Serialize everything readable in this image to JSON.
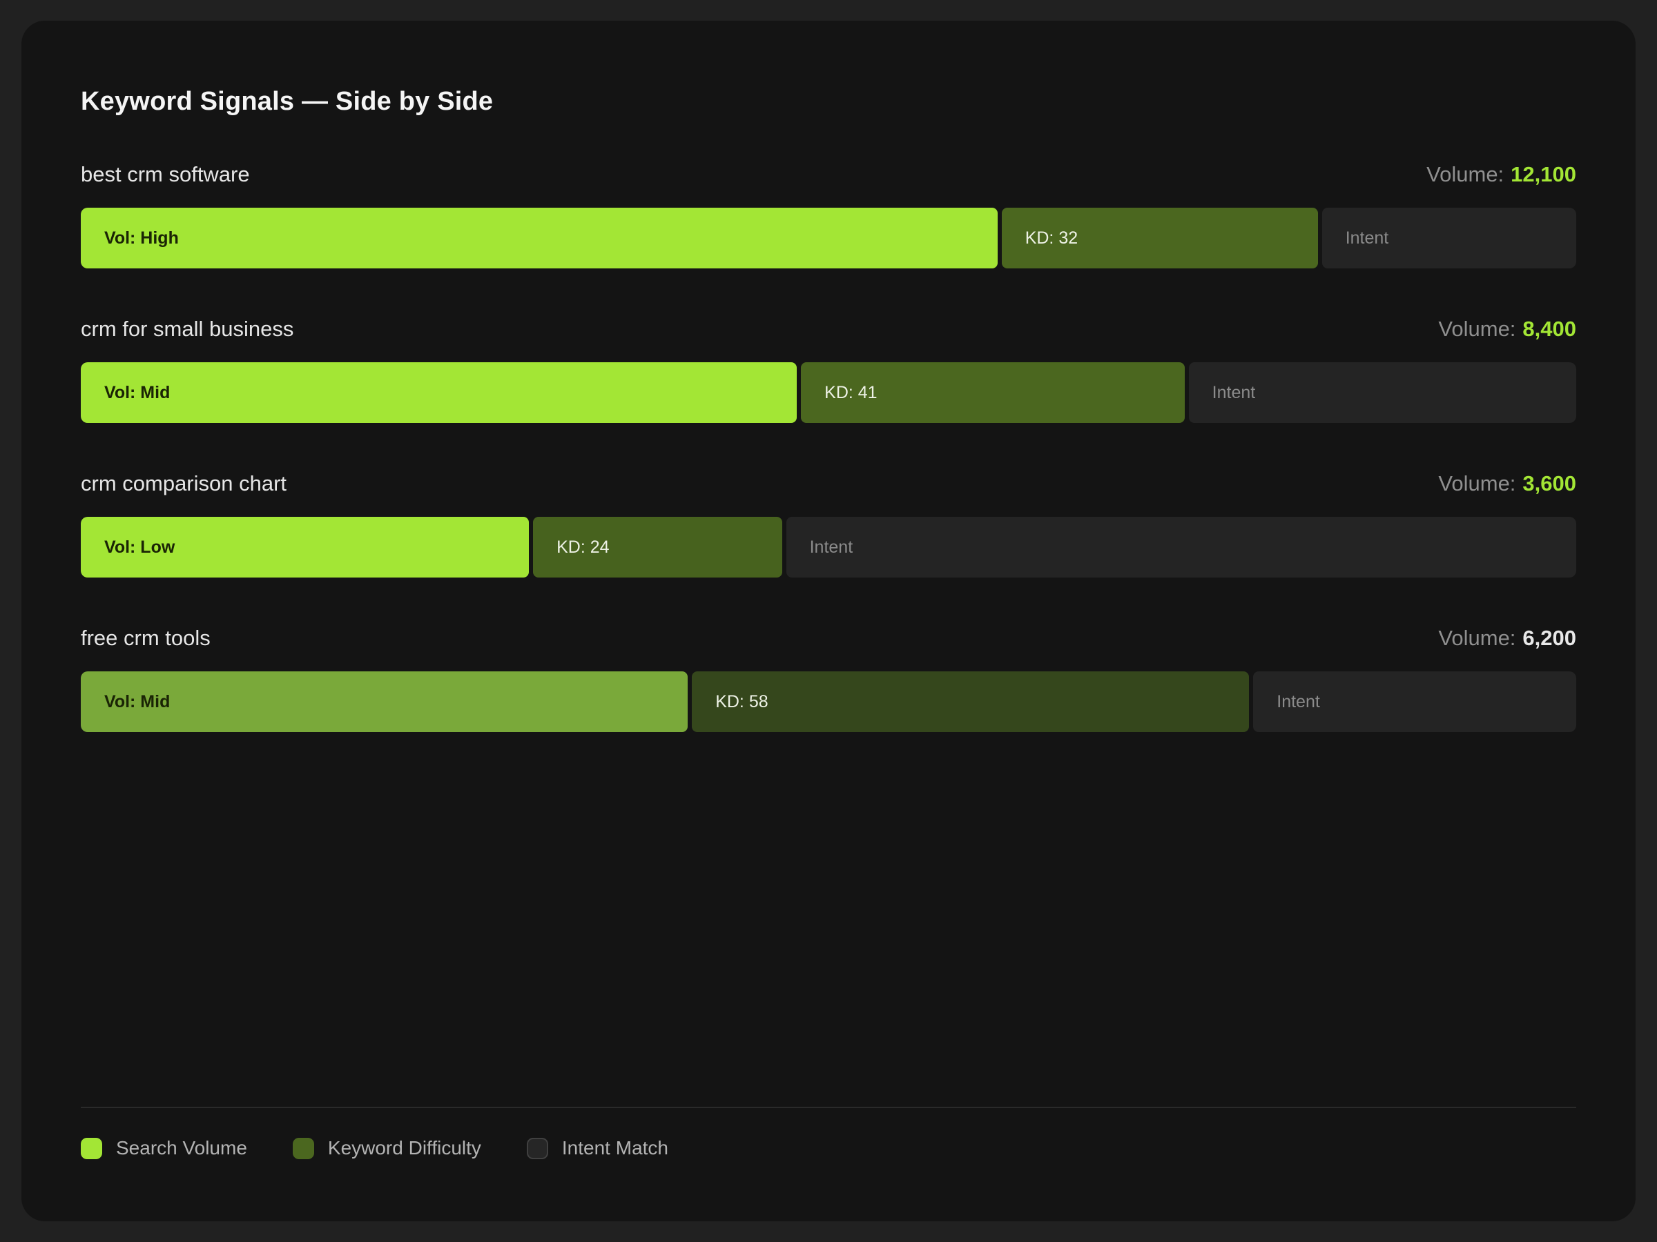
{
  "title": "Keyword Signals — Side by Side",
  "accent_color": "#a3e635",
  "chart_data": {
    "type": "bar",
    "title": "Keyword Signals — Side by Side",
    "legend_position": "bottom",
    "legend": [
      "Search Volume",
      "Keyword Difficulty",
      "Intent Match"
    ],
    "categories": [
      "best crm software",
      "crm for small business",
      "crm comparison chart",
      "free crm tools"
    ],
    "volumes": [
      12100,
      8400,
      3600,
      6200
    ],
    "kd_values": [
      32,
      41,
      24,
      58
    ],
    "vol_levels": [
      "High",
      "Mid",
      "Low",
      "Mid"
    ],
    "segment_width_pct": [
      [
        64.6,
        20.0,
        15.4
      ],
      [
        49.7,
        25.0,
        25.3
      ],
      [
        29.8,
        15.0,
        55.2
      ],
      [
        41.6,
        37.9,
        20.5
      ]
    ]
  },
  "rows": [
    {
      "keyword": "best crm software",
      "volume_label": "Volume:",
      "volume_value": "12,100",
      "volume_value_color": "#a3e635",
      "segments": [
        {
          "label": "Vol: High",
          "width": 64.6,
          "color": "#a3e635",
          "text_color": "#1a2405",
          "weight": 700
        },
        {
          "label": "KD: 32",
          "width": 20.0,
          "color": "#4b671f",
          "text_color": "#eef2e6",
          "weight": 500
        },
        {
          "label": "Intent",
          "width": 15.4,
          "color": "#242424",
          "text_color": "#8b8b8b",
          "weight": 400
        }
      ]
    },
    {
      "keyword": "crm for small business",
      "volume_label": "Volume:",
      "volume_value": "8,400",
      "volume_value_color": "#a3e635",
      "segments": [
        {
          "label": "Vol: Mid",
          "width": 49.7,
          "color": "#a3e635",
          "text_color": "#1a2405",
          "weight": 700
        },
        {
          "label": "KD: 41",
          "width": 25.0,
          "color": "#4b671f",
          "text_color": "#eef2e6",
          "weight": 500
        },
        {
          "label": "Intent",
          "width": 25.3,
          "color": "#242424",
          "text_color": "#8b8b8b",
          "weight": 400
        }
      ]
    },
    {
      "keyword": "crm comparison chart",
      "volume_label": "Volume:",
      "volume_value": "3,600",
      "volume_value_color": "#a3e635",
      "segments": [
        {
          "label": "Vol: Low",
          "width": 29.8,
          "color": "#a3e635",
          "text_color": "#1a2405",
          "weight": 700
        },
        {
          "label": "KD: 24",
          "width": 15.0,
          "color": "#47621e",
          "text_color": "#eef2e6",
          "weight": 500
        },
        {
          "label": "Intent",
          "width": 55.2,
          "color": "#242424",
          "text_color": "#8b8b8b",
          "weight": 400
        }
      ]
    },
    {
      "keyword": "free crm tools",
      "volume_label": "Volume:",
      "volume_value": "6,200",
      "volume_value_color": "#e8e8e8",
      "segments": [
        {
          "label": "Vol: Mid",
          "width": 41.6,
          "color": "#7aa93a",
          "text_color": "#1a2405",
          "weight": 700
        },
        {
          "label": "KD: 58",
          "width": 37.9,
          "color": "#35471c",
          "text_color": "#eef2e6",
          "weight": 500
        },
        {
          "label": "Intent",
          "width": 20.5,
          "color": "#242424",
          "text_color": "#8b8b8b",
          "weight": 400
        }
      ]
    }
  ],
  "legend": [
    {
      "label": "Search Volume",
      "color": "#a3e635"
    },
    {
      "label": "Keyword Difficulty",
      "color": "#4b671f"
    },
    {
      "label": "Intent Match",
      "color": "#262626",
      "border": "#404040"
    }
  ]
}
